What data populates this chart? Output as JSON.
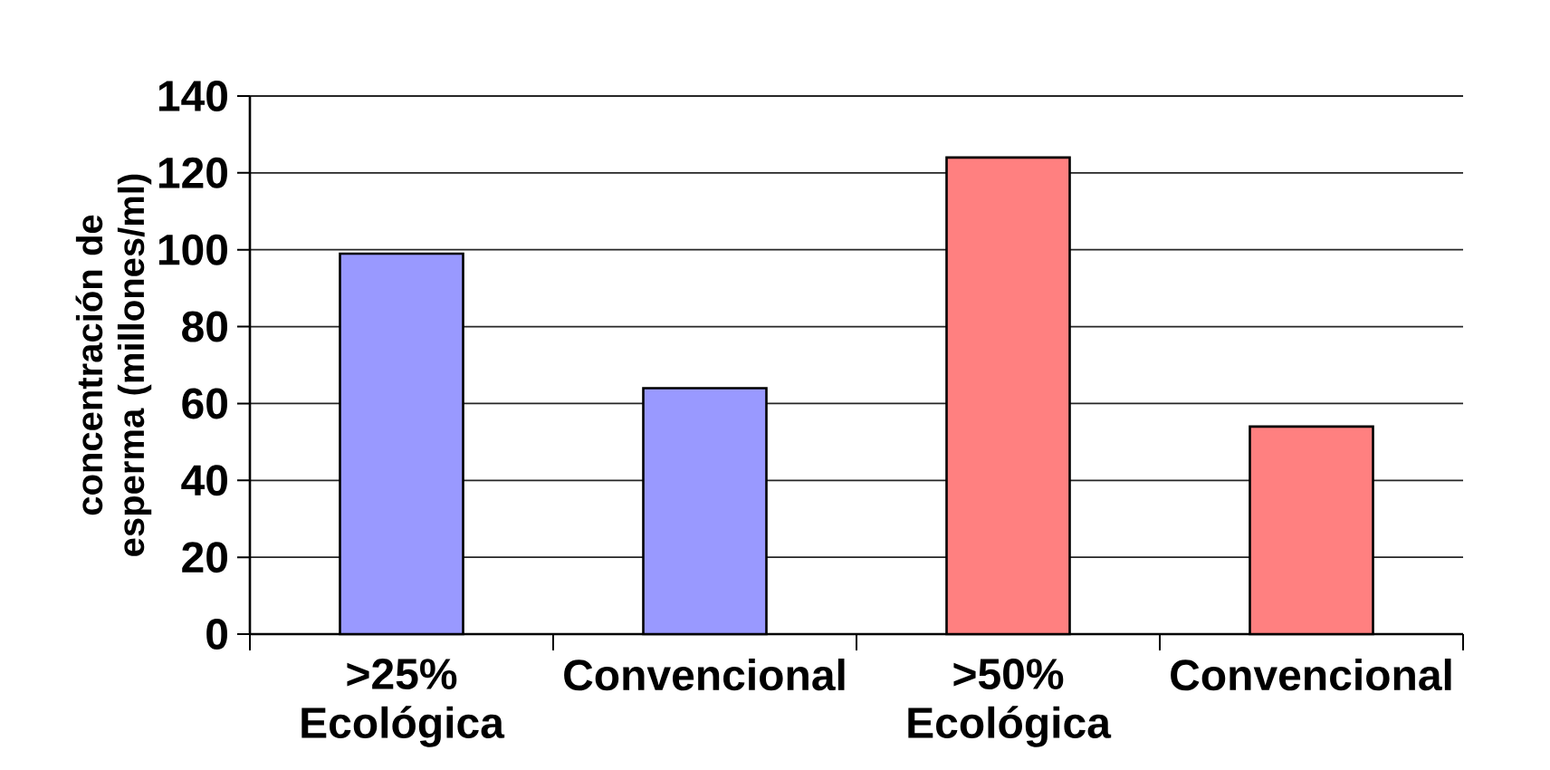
{
  "chart_data": {
    "type": "bar",
    "ylabel": "concentración de esperma (millones/ml)",
    "categories": [
      ">25% Ecológica",
      "Convencional",
      ">50% Ecológica",
      "Convencional"
    ],
    "values": [
      99,
      64,
      124,
      54
    ],
    "colors": [
      "#9999ff",
      "#9999ff",
      "#ff8080",
      "#ff8080"
    ],
    "ylim": [
      0,
      140
    ],
    "yticks": [
      0,
      20,
      40,
      60,
      80,
      100,
      120,
      140
    ],
    "grid": "y"
  }
}
